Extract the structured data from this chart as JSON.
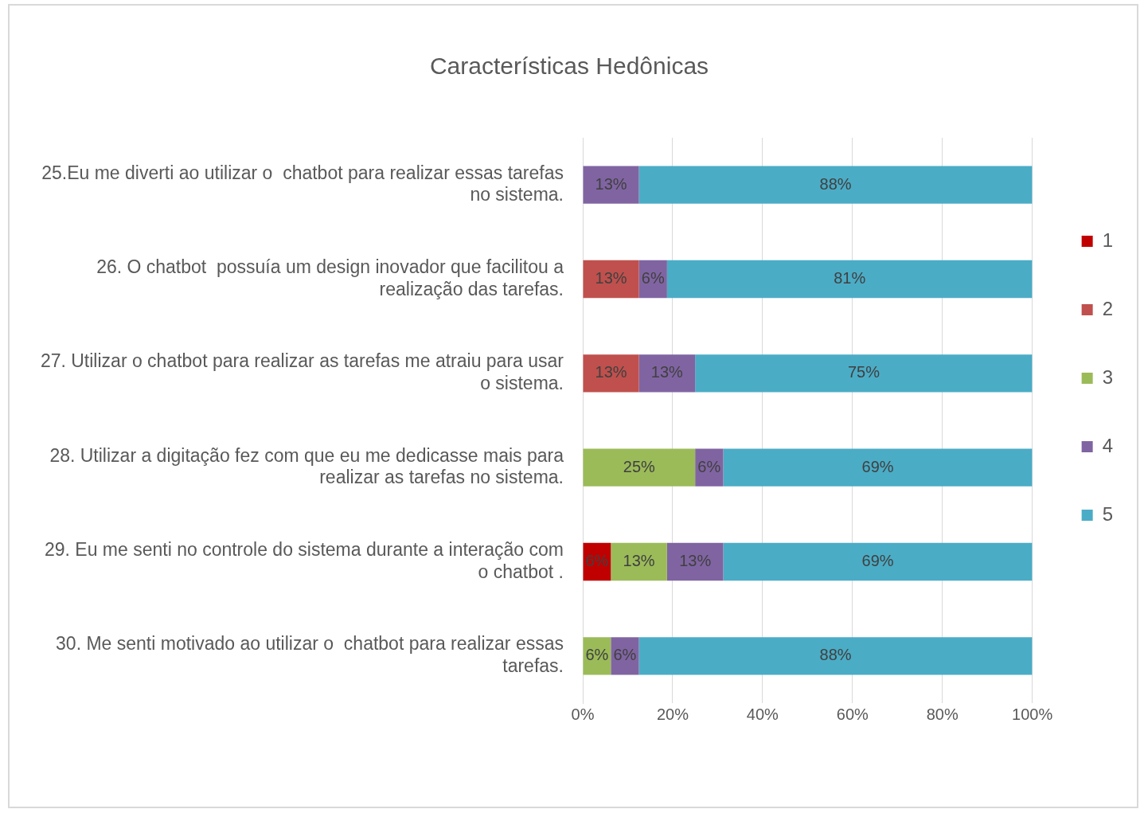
{
  "chart_data": {
    "type": "bar",
    "orientation": "horizontal",
    "stacked": true,
    "title": "Características Hedônicas",
    "categories": [
      "25.Eu me diverti ao utilizar o  chatbot para realizar essas tarefas no sistema.",
      "26. O chatbot  possuía um design inovador que facilitou a realização das tarefas.",
      "27. Utilizar o chatbot para realizar as tarefas me atraiu para usar o sistema.",
      "28. Utilizar a digitação fez com que eu me dedicasse mais para realizar as tarefas no sistema.",
      "29. Eu me senti no controle do sistema durante a interação com o chatbot .",
      "30. Me senti motivado ao utilizar o  chatbot para realizar essas tarefas."
    ],
    "series": [
      {
        "name": "1",
        "color": "#c00000",
        "values": [
          0,
          0,
          0,
          0,
          6.25,
          0
        ],
        "value_labels": [
          null,
          null,
          null,
          null,
          "6%",
          null
        ]
      },
      {
        "name": "2",
        "color": "#c0504d",
        "values": [
          0,
          12.5,
          12.5,
          0,
          0,
          0
        ],
        "value_labels": [
          null,
          "13%",
          "13%",
          null,
          null,
          null
        ]
      },
      {
        "name": "3",
        "color": "#9bbb59",
        "values": [
          0,
          0,
          0,
          25,
          12.5,
          6.25
        ],
        "value_labels": [
          null,
          null,
          null,
          "25%",
          "13%",
          "6%"
        ]
      },
      {
        "name": "4",
        "color": "#8064a2",
        "values": [
          12.5,
          6.25,
          12.5,
          6.25,
          12.5,
          6.25
        ],
        "value_labels": [
          "13%",
          "6%",
          "13%",
          "6%",
          "13%",
          "6%"
        ]
      },
      {
        "name": "5",
        "color": "#4bacc6",
        "values": [
          87.5,
          81.25,
          75,
          68.75,
          68.75,
          87.5
        ],
        "value_labels": [
          "88%",
          "81%",
          "75%",
          "69%",
          "69%",
          "88%"
        ]
      }
    ],
    "xlim": [
      0,
      100
    ],
    "xticks": [
      {
        "value": 0,
        "label": "0%"
      },
      {
        "value": 20,
        "label": "20%"
      },
      {
        "value": 40,
        "label": "40%"
      },
      {
        "value": 60,
        "label": "60%"
      },
      {
        "value": 80,
        "label": "80%"
      },
      {
        "value": 100,
        "label": "100%"
      }
    ],
    "grid": "x",
    "legend": "right"
  }
}
